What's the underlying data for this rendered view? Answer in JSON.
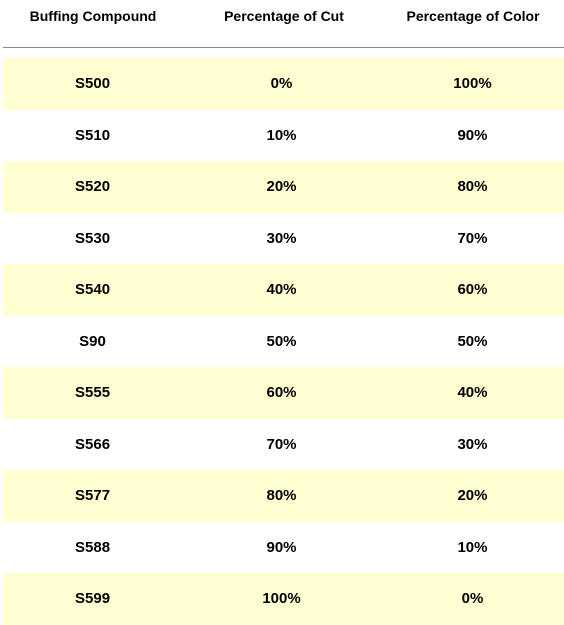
{
  "table": {
    "headers": [
      "Buffing Compound",
      "Percentage of Cut",
      "Percentage of Color"
    ],
    "rows": [
      [
        "S500",
        "0%",
        "100%"
      ],
      [
        "S510",
        "10%",
        "90%"
      ],
      [
        "S520",
        "20%",
        "80%"
      ],
      [
        "S530",
        "30%",
        "70%"
      ],
      [
        "S540",
        "40%",
        "60%"
      ],
      [
        "S90",
        "50%",
        "50%"
      ],
      [
        "S555",
        "60%",
        "40%"
      ],
      [
        "S566",
        "70%",
        "30%"
      ],
      [
        "S577",
        "80%",
        "20%"
      ],
      [
        "S588",
        "90%",
        "10%"
      ],
      [
        "S599",
        "100%",
        "0%"
      ]
    ],
    "colors": {
      "alt_row": "#ffffd2",
      "divider": "#8a8a8a"
    }
  }
}
